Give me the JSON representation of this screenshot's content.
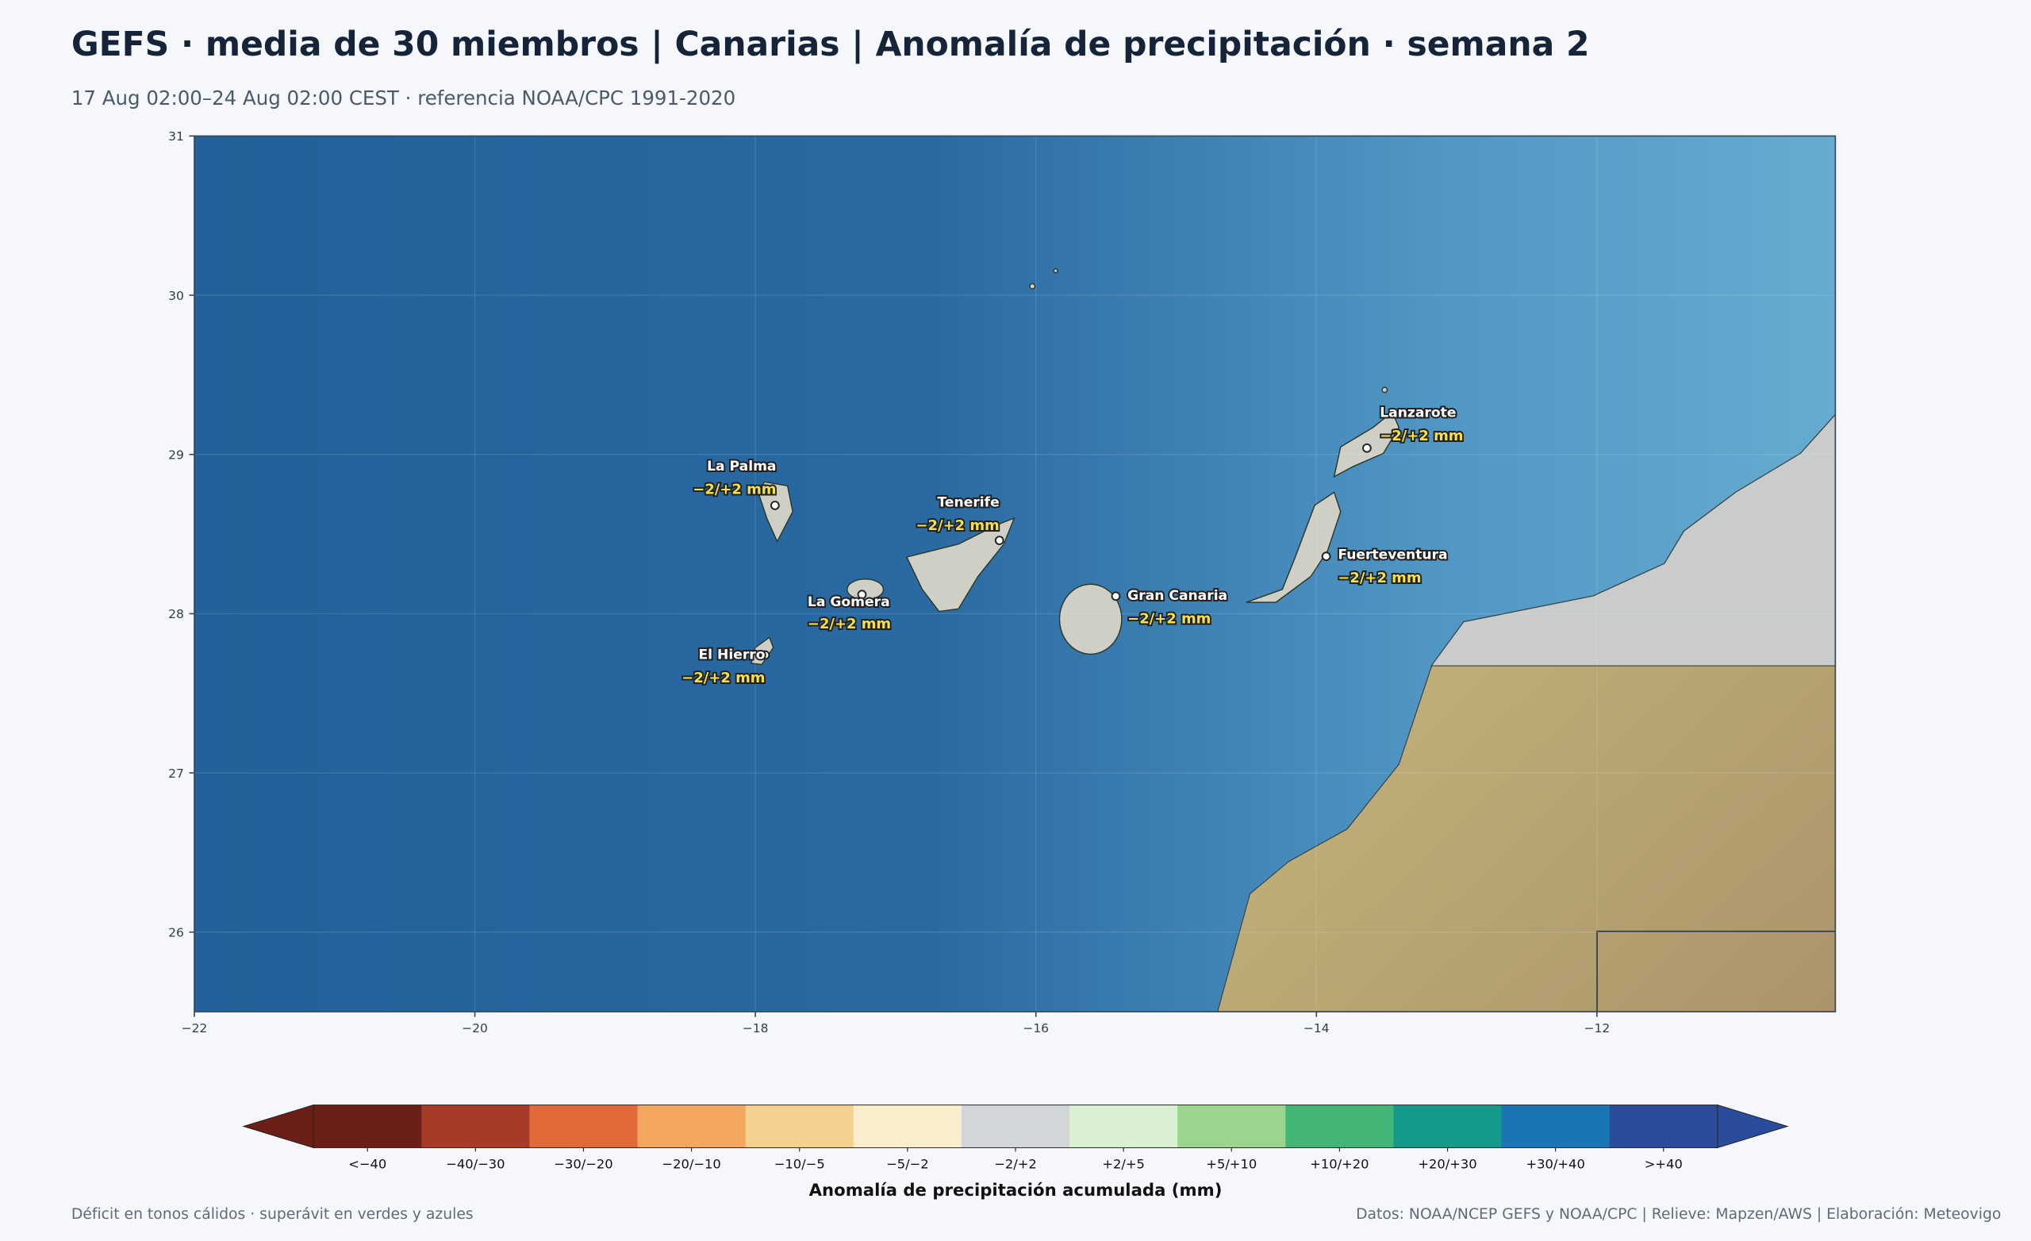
{
  "header": {
    "title": "GEFS · media de 30 miembros | Canarias | Anomalía de precipitación · semana 2",
    "subtitle": "17 Aug 02:00–24 Aug 02:00 CEST · referencia NOAA/CPC 1991-2020"
  },
  "map": {
    "type": "map",
    "xlim": [
      -22,
      -10.3
    ],
    "ylim": [
      25.5,
      31
    ],
    "xticks": [
      {
        "value": -22,
        "label": "−22"
      },
      {
        "value": -20,
        "label": "−20"
      },
      {
        "value": -18,
        "label": "−18"
      },
      {
        "value": -16,
        "label": "−16"
      },
      {
        "value": -14,
        "label": "−14"
      },
      {
        "value": -12,
        "label": "−12"
      }
    ],
    "yticks": [
      26,
      27,
      28,
      29,
      30,
      31
    ],
    "grid": true,
    "places": [
      {
        "name": "La Palma",
        "lon": -17.86,
        "lat": 28.68,
        "value_label": "−2/+2 mm"
      },
      {
        "name": "Tenerife",
        "lon": -16.26,
        "lat": 28.46,
        "value_label": "−2/+2 mm"
      },
      {
        "name": "La Gomera",
        "lon": -17.24,
        "lat": 28.12,
        "value_label": "−2/+2 mm"
      },
      {
        "name": "El Hierro",
        "lon": -17.93,
        "lat": 27.74,
        "value_label": "−2/+2 mm"
      },
      {
        "name": "Gran Canaria",
        "lon": -15.43,
        "lat": 28.11,
        "value_label": "−2/+2 mm"
      },
      {
        "name": "Fuerteventura",
        "lon": -13.93,
        "lat": 28.36,
        "value_label": "−2/+2 mm"
      },
      {
        "name": "Lanzarote",
        "lon": -13.64,
        "lat": 29.04,
        "value_label": "−2/+2 mm"
      }
    ]
  },
  "colorbar": {
    "label": "Anomalía de precipitación acumulada (mm)",
    "extend": "both",
    "classes": [
      {
        "label": "<−40",
        "color": "#6b1f17"
      },
      {
        "label": "−40/−30",
        "color": "#a83a28"
      },
      {
        "label": "−30/−20",
        "color": "#e06a3a"
      },
      {
        "label": "−20/−10",
        "color": "#f2a65e"
      },
      {
        "label": "−10/−5",
        "color": "#f6d08f"
      },
      {
        "label": "−5/−2",
        "color": "#f8eecb"
      },
      {
        "label": "−2/+2",
        "color": "#d2d6d9"
      },
      {
        "label": "+2/+5",
        "color": "#d9f0d3"
      },
      {
        "label": "+5/+10",
        "color": "#9cd58e"
      },
      {
        "label": "+10/+20",
        "color": "#43b677"
      },
      {
        "label": "+20/+30",
        "color": "#15998a"
      },
      {
        "label": "+30/+40",
        "color": "#1b75b5"
      },
      {
        "label": ">+40",
        "color": "#2a4c9b"
      }
    ]
  },
  "footer": {
    "note": "Déficit en tonos cálidos · superávit en verdes y azules",
    "source": "Datos: NOAA/NCEP GEFS y NOAA/CPC | Relieve: Mapzen/AWS | Elaboración: Meteovigo"
  }
}
